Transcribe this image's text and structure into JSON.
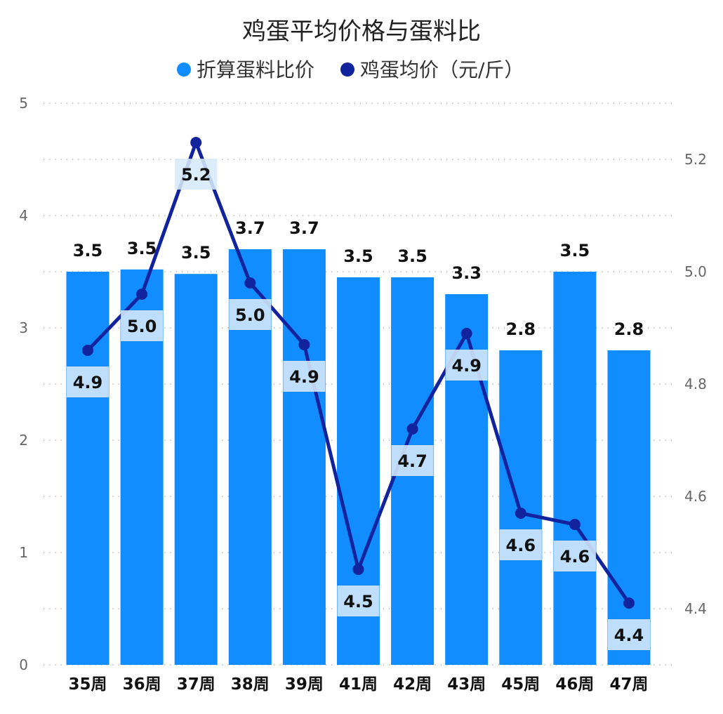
{
  "chart_data": {
    "type": "bar",
    "title": "鸡蛋平均价格与蛋料比",
    "categories": [
      "35周",
      "36周",
      "37周",
      "38周",
      "39周",
      "41周",
      "42周",
      "43周",
      "45周",
      "46周",
      "47周"
    ],
    "series": [
      {
        "name": "折算蛋料比价",
        "type": "bar",
        "axis": "left",
        "values": [
          3.5,
          3.52,
          3.48,
          3.7,
          3.7,
          3.45,
          3.45,
          3.3,
          2.8,
          3.5,
          2.8
        ],
        "labels": [
          "3.5",
          "3.5",
          "3.5",
          "3.7",
          "3.7",
          "3.5",
          "3.5",
          "3.3",
          "2.8",
          "3.5",
          "2.8"
        ],
        "color": "#118DFF"
      },
      {
        "name": "鸡蛋均价（元/斤）",
        "type": "line",
        "axis": "right",
        "values": [
          4.86,
          4.96,
          5.23,
          4.98,
          4.87,
          4.47,
          4.72,
          4.89,
          4.57,
          4.55,
          4.41
        ],
        "labels": [
          "4.9",
          "5.0",
          "5.2",
          "5.0",
          "4.9",
          "4.5",
          "4.7",
          "4.9",
          "4.6",
          "4.6",
          "4.4"
        ],
        "color": "#12239E"
      }
    ],
    "y_left": {
      "min": 0,
      "max": 5,
      "ticks": [
        "0",
        "1",
        "2",
        "3",
        "4",
        "5"
      ]
    },
    "y_right": {
      "min": 4.3,
      "max": 5.3,
      "ticks": [
        "4.4",
        "4.6",
        "4.8",
        "5.0",
        "5.2"
      ]
    },
    "grid": true,
    "legend_position": "top"
  }
}
